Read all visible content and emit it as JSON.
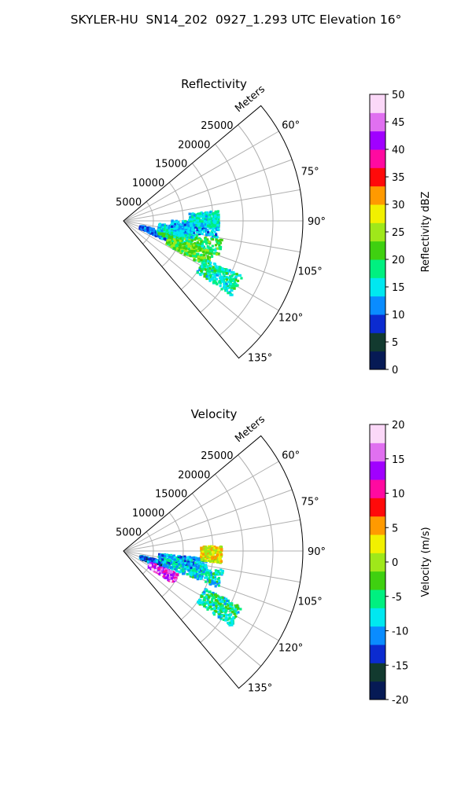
{
  "title": "SKYLER-HU  SN14_202  0927_1.293 UTC Elevation 16°",
  "chart_data": [
    {
      "type": "ppi-sector",
      "title": "Reflectivity",
      "range_label": "Meters",
      "range_ticks": [
        5000,
        10000,
        15000,
        20000,
        25000
      ],
      "azimuth_ticks": [
        "60°",
        "75°",
        "90°",
        "105°",
        "120°",
        "135°"
      ],
      "azimuth_range": [
        50,
        140
      ],
      "range_max": 30000,
      "colorbar": {
        "label": "Reflectivity dBZ",
        "ticks": [
          "0",
          "5",
          "10",
          "15",
          "20",
          "25",
          "30",
          "35",
          "40",
          "45",
          "50"
        ],
        "range": [
          0,
          50
        ],
        "stops": [
          "#061a55",
          "#123a2f",
          "#0b2bd0",
          "#0a8cff",
          "#00e8f0",
          "#00f080",
          "#3fd010",
          "#9fe81a",
          "#f2f000",
          "#ff9a00",
          "#ff0a0a",
          "#ff0aa0",
          "#a000ff",
          "#e070f0",
          "#fbd8f8"
        ]
      },
      "echo_regions": [
        {
          "az": 110,
          "r": [
            3000,
            8500
          ],
          "value": 11
        },
        {
          "az": 106,
          "r": [
            6000,
            17000
          ],
          "value": 20
        },
        {
          "az": 114,
          "r": [
            8000,
            16000
          ],
          "value": 22
        },
        {
          "az": 120,
          "r": [
            15000,
            22000
          ],
          "value": 17
        },
        {
          "az": 100,
          "r": [
            6000,
            12000
          ],
          "value": 14
        },
        {
          "az": 95,
          "r": [
            8000,
            16000
          ],
          "value": 13
        },
        {
          "az": 89,
          "r": [
            11000,
            16000
          ],
          "value": 16
        }
      ]
    },
    {
      "type": "ppi-sector",
      "title": "Velocity",
      "range_label": "Meters",
      "range_ticks": [
        5000,
        10000,
        15000,
        20000,
        25000
      ],
      "azimuth_ticks": [
        "60°",
        "75°",
        "90°",
        "105°",
        "120°",
        "135°"
      ],
      "azimuth_range": [
        50,
        140
      ],
      "range_max": 30000,
      "colorbar": {
        "label": "Velocity (m/s)",
        "ticks": [
          "-20",
          "-15",
          "-10",
          "-5",
          "0",
          "5",
          "10",
          "15",
          "20"
        ],
        "range": [
          -20,
          20
        ],
        "stops": [
          "#061a55",
          "#123a2f",
          "#0b2bd0",
          "#0a8cff",
          "#00e8f0",
          "#00f080",
          "#3fd010",
          "#9fe81a",
          "#f2f000",
          "#ff9a00",
          "#ff0a0a",
          "#ff0aa0",
          "#a000ff",
          "#e070f0",
          "#fbd8f8"
        ]
      },
      "echo_regions": [
        {
          "az": 110,
          "r": [
            3000,
            8000
          ],
          "value": -12
        },
        {
          "az": 106,
          "r": [
            7000,
            17000
          ],
          "value": -7
        },
        {
          "az": 118,
          "r": [
            5000,
            10000
          ],
          "value": 14
        },
        {
          "az": 100,
          "r": [
            6000,
            14000
          ],
          "value": -9
        },
        {
          "az": 92,
          "r": [
            13000,
            16500
          ],
          "value": 2
        },
        {
          "az": 120,
          "r": [
            15000,
            22000
          ],
          "value": -6
        }
      ]
    }
  ]
}
